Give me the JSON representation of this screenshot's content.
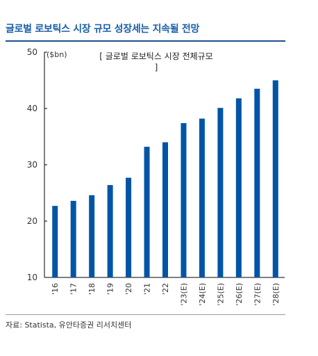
{
  "title": "글로벌 로보틱스 시장 규모 성장세는 지속될 전망",
  "source": "자료: Statista, 유안타증권 리서치센터",
  "colors": {
    "bar": "#0055a6",
    "title": "#1b5ea8",
    "rule": "#1f4e8c"
  },
  "chart_data": {
    "type": "bar",
    "title": "[ 글로벌 로보틱스 시장 전체규모 ]",
    "unit": "($bn)",
    "categories": [
      "'16",
      "'17",
      "'18",
      "'19",
      "'20",
      "'21",
      "'22",
      "'23(E)",
      "'24(E)",
      "'25(E)",
      "'26(E)",
      "'27(E)",
      "'28(E)"
    ],
    "values": [
      22.7,
      23.6,
      24.6,
      26.4,
      27.7,
      33.2,
      34.0,
      37.4,
      38.2,
      40.1,
      41.8,
      43.5,
      45.0
    ],
    "yticks": [
      10,
      20,
      30,
      40,
      50
    ],
    "ylim": [
      10,
      50
    ],
    "grid": false,
    "legend": "none"
  }
}
